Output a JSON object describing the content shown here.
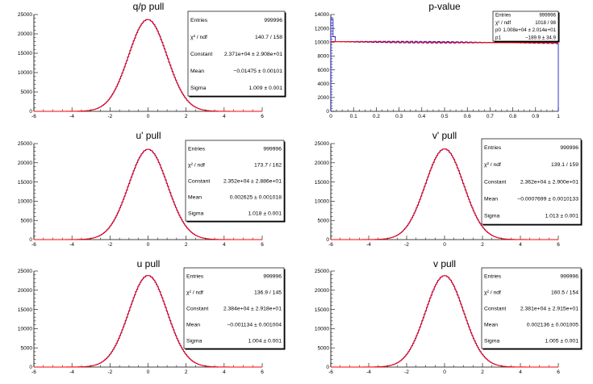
{
  "chart_data": [
    {
      "id": "qp",
      "type": "histogram",
      "title": "q/p pull",
      "xlim": [
        -6,
        6
      ],
      "ylim": [
        0,
        25000
      ],
      "xticks": [
        -6,
        -4,
        -2,
        0,
        2,
        4,
        6
      ],
      "yticks": [
        0,
        5000,
        10000,
        15000,
        20000,
        25000
      ],
      "fit": {
        "function": "gaus",
        "constant": 23710,
        "mean": -0.01475,
        "sigma": 1.009
      },
      "stats": [
        {
          "label": "Entries",
          "value": "999996"
        },
        {
          "label": "χ² / ndf",
          "value": "140.7 / 158"
        },
        {
          "label": "Constant",
          "value": "2.371e+04 ± 2.908e+01"
        },
        {
          "label": "Mean",
          "value": "−0.01475 ± 0.00101"
        },
        {
          "label": "Sigma",
          "value": "1.009 ± 0.001"
        }
      ]
    },
    {
      "id": "pvalue",
      "type": "histogram",
      "title": "p-value",
      "xlim": [
        0,
        1
      ],
      "ylim": [
        0,
        14000
      ],
      "xticks": [
        0,
        0.1,
        0.2,
        0.3,
        0.4,
        0.5,
        0.6,
        0.7,
        0.8,
        0.9,
        1
      ],
      "yticks": [
        0,
        2000,
        4000,
        6000,
        8000,
        10000,
        12000,
        14000
      ],
      "fit": {
        "function": "pol1",
        "p0": 10080,
        "p1": -189.9
      },
      "stats": [
        {
          "label": "Entries",
          "value": "999996"
        },
        {
          "label": "χ² / ndf",
          "value": "1018 / 98"
        },
        {
          "label": "p0",
          "value": "1.008e+04 ± 2.014e+01"
        },
        {
          "label": "p1",
          "value": "−189.9 ± 34.9"
        }
      ]
    },
    {
      "id": "uprime",
      "type": "histogram",
      "title": "u' pull",
      "xlim": [
        -6,
        6
      ],
      "ylim": [
        0,
        25000
      ],
      "xticks": [
        -6,
        -4,
        -2,
        0,
        2,
        4,
        6
      ],
      "yticks": [
        0,
        5000,
        10000,
        15000,
        20000,
        25000
      ],
      "fit": {
        "function": "gaus",
        "constant": 23520,
        "mean": 0.002625,
        "sigma": 1.018
      },
      "stats": [
        {
          "label": "Entries",
          "value": "999996"
        },
        {
          "label": "χ² / ndf",
          "value": "173.7 / 162"
        },
        {
          "label": "Constant",
          "value": "2.352e+04 ± 2.886e+01"
        },
        {
          "label": "Mean",
          "value": "0.002625 ± 0.001018"
        },
        {
          "label": "Sigma",
          "value": "1.018 ± 0.001"
        }
      ]
    },
    {
      "id": "vprime",
      "type": "histogram",
      "title": "v' pull",
      "xlim": [
        -6,
        6
      ],
      "ylim": [
        0,
        25000
      ],
      "xticks": [
        -6,
        -4,
        -2,
        0,
        2,
        4,
        6
      ],
      "yticks": [
        0,
        5000,
        10000,
        15000,
        20000,
        25000
      ],
      "fit": {
        "function": "gaus",
        "constant": 23620,
        "mean": -0.0007699,
        "sigma": 1.013
      },
      "stats": [
        {
          "label": "Entries",
          "value": "999996"
        },
        {
          "label": "χ² / ndf",
          "value": "139.1 / 159"
        },
        {
          "label": "Constant",
          "value": "2.362e+04 ± 2.900e+01"
        },
        {
          "label": "Mean",
          "value": "−0.0007699 ± 0.0010133"
        },
        {
          "label": "Sigma",
          "value": "1.013 ± 0.001"
        }
      ]
    },
    {
      "id": "u",
      "type": "histogram",
      "title": "u pull",
      "xlim": [
        -6,
        6
      ],
      "ylim": [
        0,
        25000
      ],
      "xticks": [
        -6,
        -4,
        -2,
        0,
        2,
        4,
        6
      ],
      "yticks": [
        0,
        5000,
        10000,
        15000,
        20000,
        25000
      ],
      "fit": {
        "function": "gaus",
        "constant": 23840,
        "mean": -0.001134,
        "sigma": 1.004
      },
      "stats": [
        {
          "label": "Entries",
          "value": "999996"
        },
        {
          "label": "χ² / ndf",
          "value": "136.9 / 145"
        },
        {
          "label": "Constant",
          "value": "2.384e+04 ± 2.918e+01"
        },
        {
          "label": "Mean",
          "value": "−0.001134 ± 0.001004"
        },
        {
          "label": "Sigma",
          "value": "1.004 ± 0.001"
        }
      ]
    },
    {
      "id": "v",
      "type": "histogram",
      "title": "v pull",
      "xlim": [
        -6,
        6
      ],
      "ylim": [
        0,
        25000
      ],
      "xticks": [
        -6,
        -4,
        -2,
        0,
        2,
        4,
        6
      ],
      "yticks": [
        0,
        5000,
        10000,
        15000,
        20000,
        25000
      ],
      "fit": {
        "function": "gaus",
        "constant": 23810,
        "mean": 0.002136,
        "sigma": 1.005
      },
      "stats": [
        {
          "label": "Entries",
          "value": "999996"
        },
        {
          "label": "χ² / ndf",
          "value": "160.5 / 154"
        },
        {
          "label": "Constant",
          "value": "2.381e+04 ± 2.915e+01"
        },
        {
          "label": "Mean",
          "value": "0.002136 ± 0.001005"
        },
        {
          "label": "Sigma",
          "value": "1.005 ± 0.001"
        }
      ]
    }
  ],
  "colors": {
    "histogram": "#0000cc",
    "fit": "#ff0000",
    "axis": "#000000",
    "statbox": "#ffffff"
  }
}
